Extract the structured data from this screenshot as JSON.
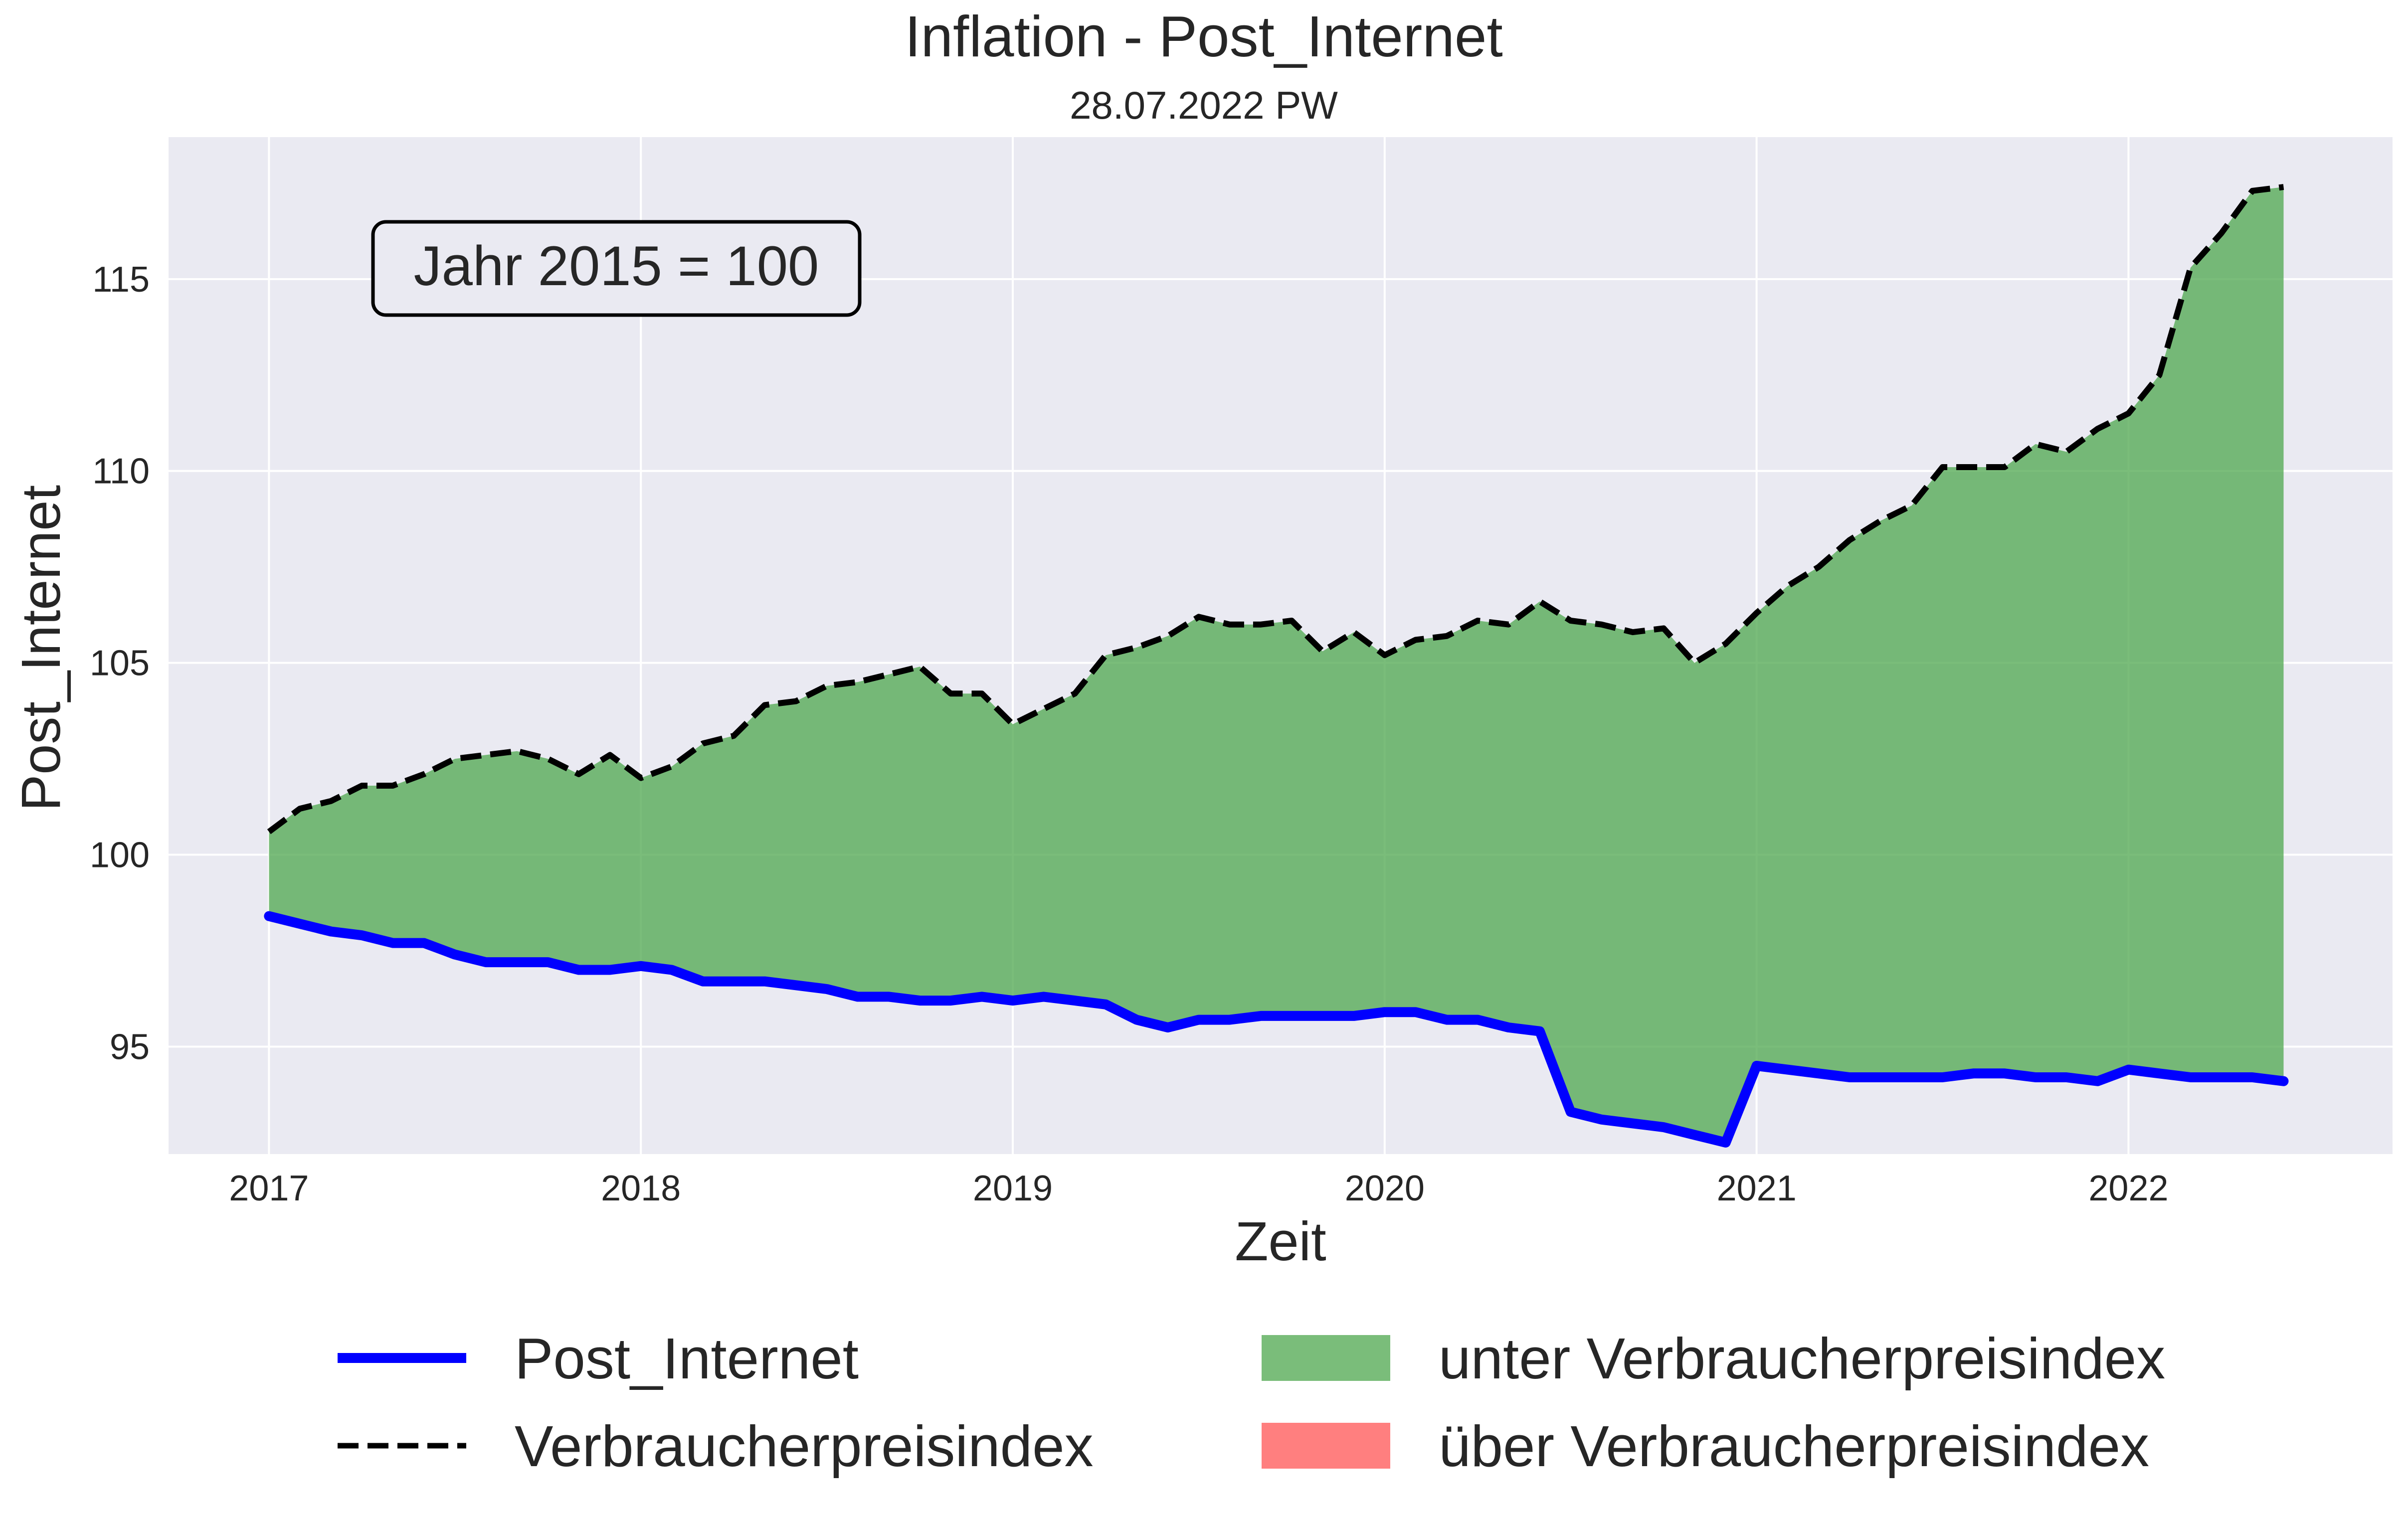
{
  "chart_data": {
    "type": "area",
    "title": "Inflation - Post_Internet",
    "subtitle": "28.07.2022 PW",
    "xlabel": "Zeit",
    "ylabel": "Post_Internet",
    "annotation": "Jahr 2015 = 100",
    "xlim": [
      2016.73,
      2022.71
    ],
    "ylim": [
      92.2,
      118.7
    ],
    "x_ticks": [
      2017,
      2018,
      2019,
      2020,
      2021,
      2022
    ],
    "x_tick_labels": [
      "2017",
      "2018",
      "2019",
      "2020",
      "2021",
      "2022"
    ],
    "y_ticks": [
      95,
      100,
      105,
      110,
      115
    ],
    "y_tick_labels": [
      "95",
      "100",
      "105",
      "110",
      "115"
    ],
    "grid": true,
    "legend_position": "bottom",
    "x": [
      2017.0,
      2017.083,
      2017.167,
      2017.25,
      2017.333,
      2017.417,
      2017.5,
      2017.583,
      2017.667,
      2017.75,
      2017.833,
      2017.917,
      2018.0,
      2018.083,
      2018.167,
      2018.25,
      2018.333,
      2018.417,
      2018.5,
      2018.583,
      2018.667,
      2018.75,
      2018.833,
      2018.917,
      2019.0,
      2019.083,
      2019.167,
      2019.25,
      2019.333,
      2019.417,
      2019.5,
      2019.583,
      2019.667,
      2019.75,
      2019.833,
      2019.917,
      2020.0,
      2020.083,
      2020.167,
      2020.25,
      2020.333,
      2020.417,
      2020.5,
      2020.583,
      2020.667,
      2020.75,
      2020.833,
      2020.917,
      2021.0,
      2021.083,
      2021.167,
      2021.25,
      2021.333,
      2021.417,
      2021.5,
      2021.583,
      2021.667,
      2021.75,
      2021.833,
      2021.917,
      2022.0,
      2022.083,
      2022.167,
      2022.25,
      2022.333,
      2022.417
    ],
    "series": [
      {
        "name": "Post_Internet",
        "style": "solid",
        "color": "#0000ff",
        "values": [
          98.4,
          98.2,
          98.0,
          97.9,
          97.7,
          97.7,
          97.4,
          97.2,
          97.2,
          97.2,
          97.0,
          97.0,
          97.1,
          97.0,
          96.7,
          96.7,
          96.7,
          96.6,
          96.5,
          96.3,
          96.3,
          96.2,
          96.2,
          96.3,
          96.2,
          96.3,
          96.2,
          96.1,
          95.7,
          95.5,
          95.7,
          95.7,
          95.8,
          95.8,
          95.8,
          95.8,
          95.9,
          95.9,
          95.7,
          95.7,
          95.5,
          95.4,
          93.3,
          93.1,
          93.0,
          92.9,
          92.7,
          92.5,
          94.5,
          94.4,
          94.3,
          94.2,
          94.2,
          94.2,
          94.2,
          94.3,
          94.3,
          94.2,
          94.2,
          94.1,
          94.4,
          94.3,
          94.2,
          94.2,
          94.2,
          94.1
        ]
      },
      {
        "name": "Verbraucherpreisindex",
        "style": "dashed",
        "color": "#000000",
        "values": [
          100.6,
          101.2,
          101.4,
          101.8,
          101.8,
          102.1,
          102.5,
          102.6,
          102.7,
          102.5,
          102.1,
          102.6,
          102.0,
          102.3,
          102.9,
          103.1,
          103.9,
          104.0,
          104.4,
          104.5,
          104.7,
          104.9,
          104.2,
          104.2,
          103.4,
          103.8,
          104.2,
          105.2,
          105.4,
          105.7,
          106.2,
          106.0,
          106.0,
          106.1,
          105.3,
          105.8,
          105.2,
          105.6,
          105.7,
          106.1,
          106.0,
          106.6,
          106.1,
          106.0,
          105.8,
          105.9,
          105.0,
          105.5,
          106.3,
          107.0,
          107.5,
          108.2,
          108.7,
          109.1,
          110.1,
          110.1,
          110.1,
          110.7,
          110.5,
          111.1,
          111.5,
          112.5,
          115.3,
          116.2,
          117.3,
          117.4
        ]
      }
    ],
    "fills": [
      {
        "name": "unter Verbraucherpreisindex",
        "color": "#4ca64c",
        "opacity": 0.74
      },
      {
        "name": "über Verbraucherpreisindex",
        "color": "#ff0000",
        "opacity": 0.5
      }
    ],
    "legend": [
      {
        "label": "Post_Internet",
        "kind": "line-solid",
        "color": "#0000ff"
      },
      {
        "label": "Verbraucherpreisindex",
        "kind": "line-dashed",
        "color": "#000000"
      },
      {
        "label": "unter Verbraucherpreisindex",
        "kind": "patch",
        "color": "#4ca64c"
      },
      {
        "label": "über Verbraucherpreisindex",
        "kind": "patch",
        "color": "#ff0000"
      }
    ],
    "colors": {
      "plot_background": "#eaeaf2",
      "grid": "#ffffff"
    }
  }
}
